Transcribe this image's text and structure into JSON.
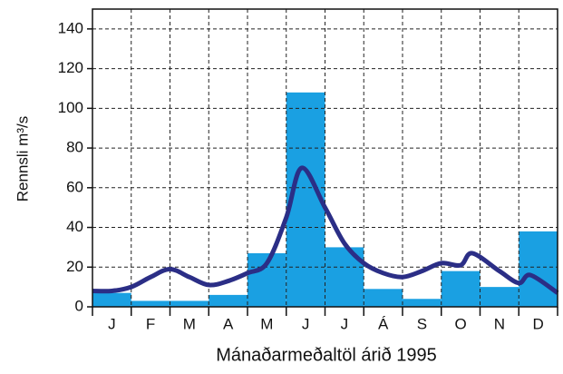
{
  "chart_data": {
    "type": "bar",
    "x_label": "Mánaðarmeðaltöl árið 1995",
    "y_label": "Rennsli  m³/s",
    "categories": [
      "J",
      "F",
      "M",
      "A",
      "M",
      "J",
      "J",
      "Á",
      "S",
      "O",
      "N",
      "D"
    ],
    "values": [
      7,
      3,
      3,
      6,
      27,
      108,
      30,
      9,
      4,
      18,
      10,
      38
    ],
    "color": "#1aa0e2",
    "line": {
      "color": "#2b2e86",
      "x": [
        0,
        0.5,
        1,
        1.5,
        2,
        2.5,
        3,
        3.5,
        4,
        4.5,
        5,
        5.4,
        6,
        6.5,
        7,
        7.5,
        8,
        8.5,
        9,
        9.5,
        9.8,
        10.5,
        11,
        11.3,
        12
      ],
      "values": [
        8,
        8,
        10,
        15,
        19,
        15,
        11,
        13,
        17,
        22,
        45,
        70,
        50,
        32,
        22,
        17,
        15,
        18,
        22,
        21,
        27,
        18,
        12,
        16,
        7
      ]
    },
    "xlim": [
      0,
      12
    ],
    "ylim": [
      0,
      150
    ],
    "yticks": [
      0,
      20,
      40,
      60,
      80,
      100,
      120,
      140
    ],
    "grid": true
  }
}
